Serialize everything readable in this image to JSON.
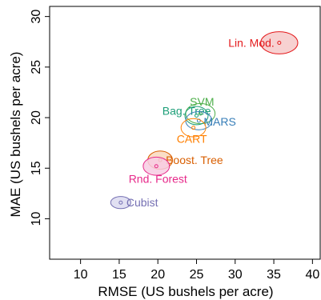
{
  "chart_data": {
    "type": "scatter",
    "xlabel": "RMSE (US bushels per acre)",
    "ylabel": "MAE (US bushels per acre)",
    "xlim": [
      6,
      41
    ],
    "ylim": [
      6,
      31
    ],
    "xticks": [
      10,
      15,
      20,
      25,
      30,
      35,
      40
    ],
    "yticks": [
      10,
      15,
      20,
      25,
      30
    ],
    "xtick_labels": [
      "10",
      "15",
      "20",
      "25",
      "30",
      "35",
      "40"
    ],
    "ytick_labels": [
      "10",
      "15",
      "20",
      "25",
      "30"
    ],
    "grid": false,
    "points": [
      {
        "label": "Lin. Mod.",
        "x": 35.7,
        "y": 27.4,
        "rx": 2.4,
        "ry": 1.1,
        "color": "#e41a1c",
        "fill": "#f6c9c9",
        "label_side": "left"
      },
      {
        "label": "SVM",
        "x": 25.5,
        "y": 20.4,
        "rx": 1.9,
        "ry": 1.0,
        "color": "#4daf4a",
        "fill": "none",
        "label_side": "above"
      },
      {
        "label": "Bag. Tree",
        "x": 25.0,
        "y": 20.2,
        "rx": 1.5,
        "ry": 0.9,
        "color": "#1b9e77",
        "fill": "none",
        "label_side": "left"
      },
      {
        "label": "MARS",
        "x": 25.3,
        "y": 19.7,
        "rx": 1.7,
        "ry": 0.9,
        "color": "#377eb8",
        "fill": "none",
        "label_side": "right"
      },
      {
        "label": "CART",
        "x": 24.6,
        "y": 19.0,
        "rx": 1.6,
        "ry": 0.9,
        "color": "#ff7f00",
        "fill": "none",
        "label_side": "below"
      },
      {
        "label": "Boost. Tree",
        "x": 20.3,
        "y": 15.8,
        "rx": 1.6,
        "ry": 0.9,
        "color": "#d95f02",
        "fill": "#f9d8bd",
        "label_side": "right"
      },
      {
        "label": "Rnd. Forest",
        "x": 19.8,
        "y": 15.2,
        "rx": 1.7,
        "ry": 0.9,
        "color": "#e7298a",
        "fill": "#f7cce3",
        "label_side": "below"
      },
      {
        "label": "Cubist",
        "x": 15.2,
        "y": 11.6,
        "rx": 1.3,
        "ry": 0.6,
        "color": "#7570b3",
        "fill": "#dcdaf0",
        "label_side": "right"
      }
    ]
  }
}
